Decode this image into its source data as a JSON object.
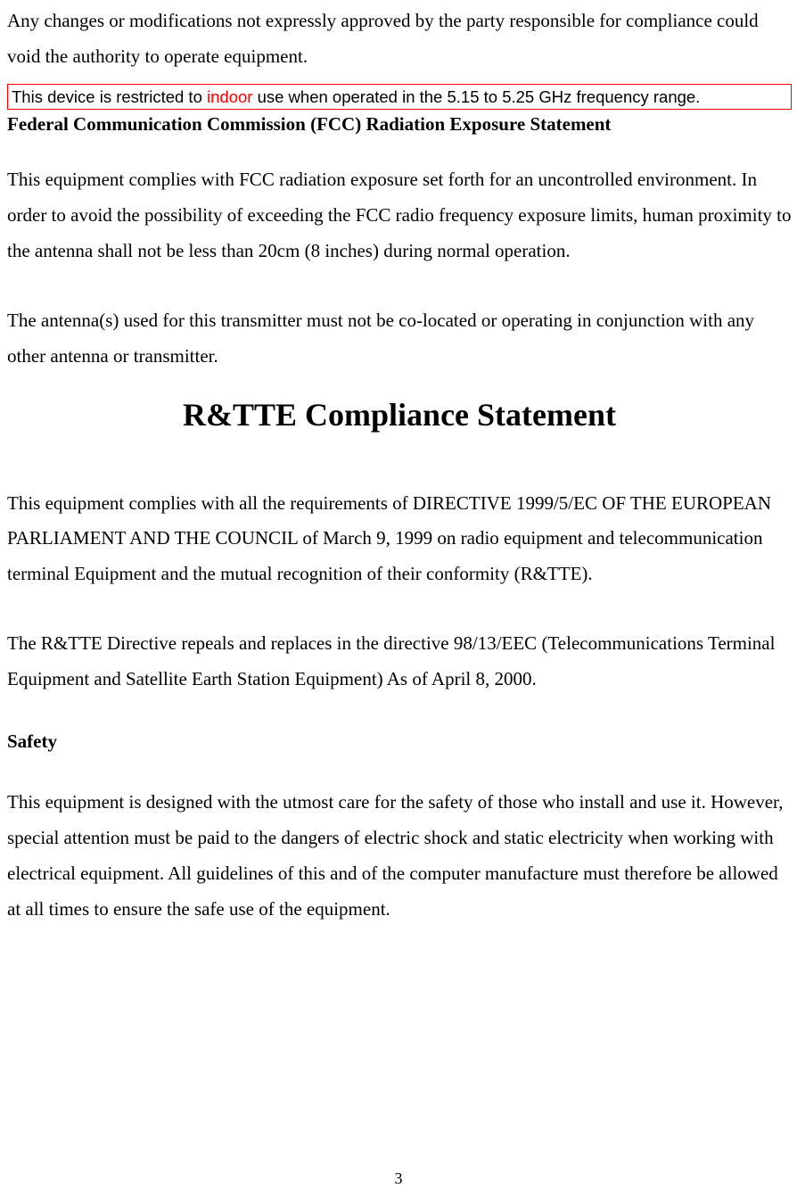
{
  "colors": {
    "text": "#000000",
    "background": "#ffffff",
    "box_border": "#ff0000",
    "highlight_word": "#ff0000"
  },
  "fonts": {
    "body_family": "Times New Roman",
    "notice_family": "Arial",
    "body_size_pt": 16,
    "notice_size_pt": 14,
    "h1_size_pt": 27
  },
  "intro_para": "Any changes or modifications not expressly approved by the party responsible for compliance could void the authority to operate equipment.",
  "notice": {
    "prefix": "This device is restricted to ",
    "highlight": "indoor",
    "suffix": " use when operated in the 5.15 to 5.25 GHz frequency range."
  },
  "fcc": {
    "heading": "Federal Communication Commission (FCC) Radiation Exposure Statement",
    "para1": "This equipment complies with FCC radiation exposure set forth for an uncontrolled environment. In order to avoid the possibility of exceeding the FCC radio frequency exposure limits, human proximity to the antenna shall not be less than 20cm (8 inches) during normal operation.",
    "para2": "The antenna(s) used for this transmitter must not be co-located or operating in conjunction with any other antenna or transmitter."
  },
  "rtte": {
    "title": "R&TTE Compliance Statement",
    "para1": "This equipment complies with all the requirements of DIRECTIVE 1999/5/EC OF THE EUROPEAN PARLIAMENT AND THE COUNCIL of March 9, 1999 on radio equipment and telecommunication terminal Equipment and the mutual recognition of their conformity (R&TTE).",
    "para2": "The R&TTE Directive repeals and replaces in the directive 98/13/EEC (Telecommunications Terminal Equipment and Satellite Earth Station Equipment) As of April 8, 2000."
  },
  "safety": {
    "heading": "Safety",
    "para": "This equipment is designed with the utmost care for the safety of those who install and use it. However, special attention must be paid to the dangers of electric shock and static electricity when working with electrical equipment. All guidelines of this and of the computer manufacture must therefore be allowed at all times to ensure the safe use of the equipment."
  },
  "page_number": "3"
}
